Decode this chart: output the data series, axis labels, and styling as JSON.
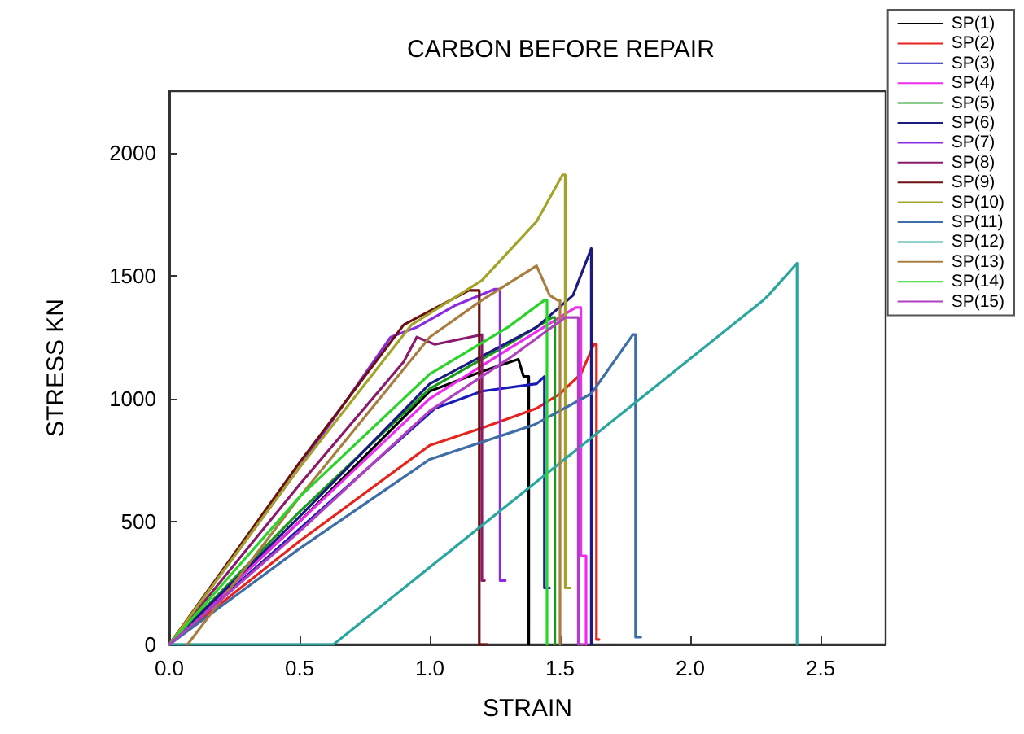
{
  "chart_data": {
    "type": "line",
    "title": "CARBON BEFORE REPAIR",
    "xlabel": "STRAIN",
    "ylabel": "STRESS KN",
    "xlim": [
      0,
      2.75
    ],
    "xticks": [
      {
        "value": 0,
        "label": "0.0"
      },
      0.5,
      {
        "value": 1,
        "label": "1.0"
      },
      1.5,
      {
        "value": 2,
        "label": "2.0"
      },
      2.5
    ],
    "ylim": [
      0,
      2250
    ],
    "yticks": [
      0,
      500,
      1000,
      1500,
      2000
    ],
    "grid": false,
    "legend": "top right",
    "series": [
      {
        "name": "SP(1)",
        "color": "#000000",
        "x": [
          0,
          0.5,
          1.0,
          1.2,
          1.34,
          1.36,
          1.38,
          1.38
        ],
        "values": [
          0,
          500,
          1030,
          1110,
          1160,
          1090,
          1090,
          0
        ]
      },
      {
        "name": "SP(2)",
        "color": "#e8221c",
        "x": [
          0,
          0.5,
          1.0,
          1.2,
          1.41,
          1.5,
          1.58,
          1.63,
          1.64,
          1.64,
          1.65
        ],
        "values": [
          0,
          420,
          810,
          880,
          960,
          1020,
          1100,
          1220,
          1220,
          20,
          20
        ]
      },
      {
        "name": "SP(3)",
        "color": "#1b1bb8",
        "x": [
          0,
          0.5,
          1.02,
          1.2,
          1.41,
          1.44,
          1.44,
          1.46
        ],
        "values": [
          0,
          470,
          960,
          1030,
          1060,
          1090,
          230,
          230
        ]
      },
      {
        "name": "SP(4)",
        "color": "#ee2bee",
        "x": [
          0,
          0.5,
          1.0,
          1.3,
          1.56,
          1.58,
          1.58,
          1.6,
          1.6
        ],
        "values": [
          0,
          500,
          1000,
          1200,
          1370,
          1370,
          360,
          360,
          0
        ]
      },
      {
        "name": "SP(5)",
        "color": "#1a9a1a",
        "x": [
          0,
          0.5,
          1.0,
          1.3,
          1.47,
          1.48,
          1.48
        ],
        "values": [
          0,
          540,
          1040,
          1220,
          1330,
          1330,
          0
        ]
      },
      {
        "name": "SP(6)",
        "color": "#1a1a80",
        "x": [
          0,
          0.5,
          1.0,
          1.41,
          1.55,
          1.62,
          1.62
        ],
        "values": [
          0,
          520,
          1060,
          1290,
          1420,
          1610,
          0
        ]
      },
      {
        "name": "SP(7)",
        "color": "#8a2be2",
        "x": [
          0,
          0.5,
          0.85,
          0.95,
          1.1,
          1.25,
          1.27,
          1.27,
          1.29
        ],
        "values": [
          0,
          720,
          1250,
          1290,
          1380,
          1445,
          1445,
          260,
          260
        ]
      },
      {
        "name": "SP(8)",
        "color": "#8b1a6b",
        "x": [
          0,
          0.5,
          0.9,
          0.95,
          1.02,
          1.2,
          1.2,
          1.21
        ],
        "values": [
          0,
          650,
          1150,
          1250,
          1220,
          1260,
          260,
          260
        ]
      },
      {
        "name": "SP(9)",
        "color": "#6b0f0f",
        "x": [
          0,
          0.5,
          0.9,
          1.15,
          1.19,
          1.19,
          1.22
        ],
        "values": [
          0,
          740,
          1300,
          1440,
          1440,
          0,
          0
        ]
      },
      {
        "name": "SP(10)",
        "color": "#a3a32a",
        "x": [
          0,
          0.5,
          0.93,
          1.2,
          1.41,
          1.51,
          1.52,
          1.52,
          1.54
        ],
        "values": [
          0,
          720,
          1300,
          1480,
          1720,
          1910,
          1910,
          230,
          230
        ]
      },
      {
        "name": "SP(11)",
        "color": "#3d6ea8",
        "x": [
          0,
          0.5,
          1.0,
          1.4,
          1.62,
          1.78,
          1.79,
          1.79,
          1.81
        ],
        "values": [
          0,
          390,
          753,
          893,
          1020,
          1260,
          1260,
          30,
          30
        ]
      },
      {
        "name": "SP(12)",
        "color": "#2aa6a0",
        "x": [
          0,
          0.63,
          2.28,
          2.3,
          2.41,
          2.41
        ],
        "values": [
          0,
          0,
          1400,
          1420,
          1550,
          0
        ]
      },
      {
        "name": "SP(13)",
        "color": "#a87d40",
        "x": [
          0.07,
          0.5,
          1.0,
          1.2,
          1.41,
          1.46,
          1.49,
          1.5,
          1.5
        ],
        "values": [
          0,
          600,
          1250,
          1400,
          1540,
          1420,
          1400,
          1400,
          0
        ]
      },
      {
        "name": "SP(14)",
        "color": "#2ad42a",
        "x": [
          0,
          0.5,
          1.0,
          1.3,
          1.44,
          1.45,
          1.45
        ],
        "values": [
          0,
          600,
          1100,
          1290,
          1400,
          1400,
          0
        ]
      },
      {
        "name": "SP(15)",
        "color": "#b040c0",
        "x": [
          0,
          0.5,
          1.0,
          1.3,
          1.52,
          1.57,
          1.57,
          1.59
        ],
        "values": [
          0,
          460,
          950,
          1160,
          1330,
          1330,
          0,
          0
        ]
      }
    ]
  }
}
